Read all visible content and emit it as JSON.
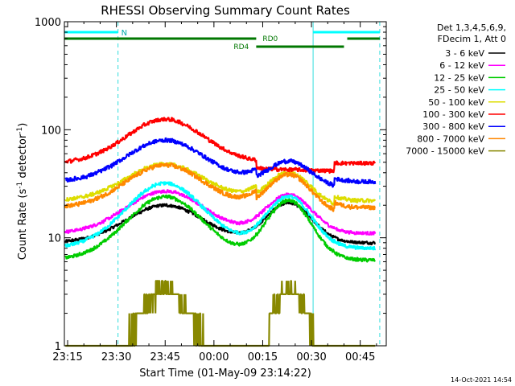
{
  "chart_data": {
    "type": "line",
    "title": "RHESSI Observing Summary Count Rates",
    "xlabel": "Start Time (01-May-09 23:14:22)",
    "ylabel_main": "Count Rate (s",
    "ylabel_sup1": "-1",
    "ylabel_mid": " detector",
    "ylabel_sup2": "-1",
    "ylabel_end": ")",
    "yscale": "log",
    "ylim": [
      1,
      1000
    ],
    "xlim_min": [
      -1,
      98
    ],
    "x_tick_labels": [
      "23:15",
      "23:30",
      "23:45",
      "00:00",
      "00:15",
      "00:30",
      "00:45"
    ],
    "x_tick_positions_min": [
      0,
      15,
      30,
      45,
      60,
      75,
      90
    ],
    "y_tick_labels": [
      "1",
      "10",
      "100",
      "1000"
    ],
    "y_tick_values": [
      1,
      10,
      100,
      1000
    ],
    "legend_header": [
      "Det 1,3,4,5,6,9,",
      "FDecim 1, Att 0"
    ],
    "series": [
      {
        "name": "3 - 6 keV",
        "color": "#000000",
        "base": 9,
        "peak1": 20,
        "peak2": 21
      },
      {
        "name": "6 - 12 keV",
        "color": "#ff00ff",
        "base": 11,
        "peak1": 27,
        "peak2": 25
      },
      {
        "name": "12 - 25 keV",
        "color": "#00cc00",
        "base": 6.2,
        "peak1": 24,
        "peak2": 22
      },
      {
        "name": "25 - 50 keV",
        "color": "#00ffff",
        "base": 8,
        "peak1": 32,
        "peak2": 24
      },
      {
        "name": "50 - 100 keV",
        "color": "#dddd00",
        "base": 22,
        "peak1": 48,
        "peak2": 47
      },
      {
        "name": "100 - 300 keV",
        "color": "#ff0000",
        "base": 49,
        "peak1": 125,
        "peak2": 50
      },
      {
        "name": "300 - 800 keV",
        "color": "#0000ff",
        "base": 33,
        "peak1": 80,
        "peak2": 60
      },
      {
        "name": "800 - 7000 keV",
        "color": "#ff8800",
        "base": 19,
        "peak1": 47,
        "peak2": 45
      },
      {
        "name": "7000 - 15000 keV",
        "color": "#888800",
        "base": 1,
        "peak1": 3.2,
        "peak2": 3.2
      }
    ],
    "annotations": {
      "night_label": "N",
      "rd0_label": "RD0",
      "rd4_label": "RD4"
    },
    "timestamp": "14-Oct-2021 14:54"
  }
}
